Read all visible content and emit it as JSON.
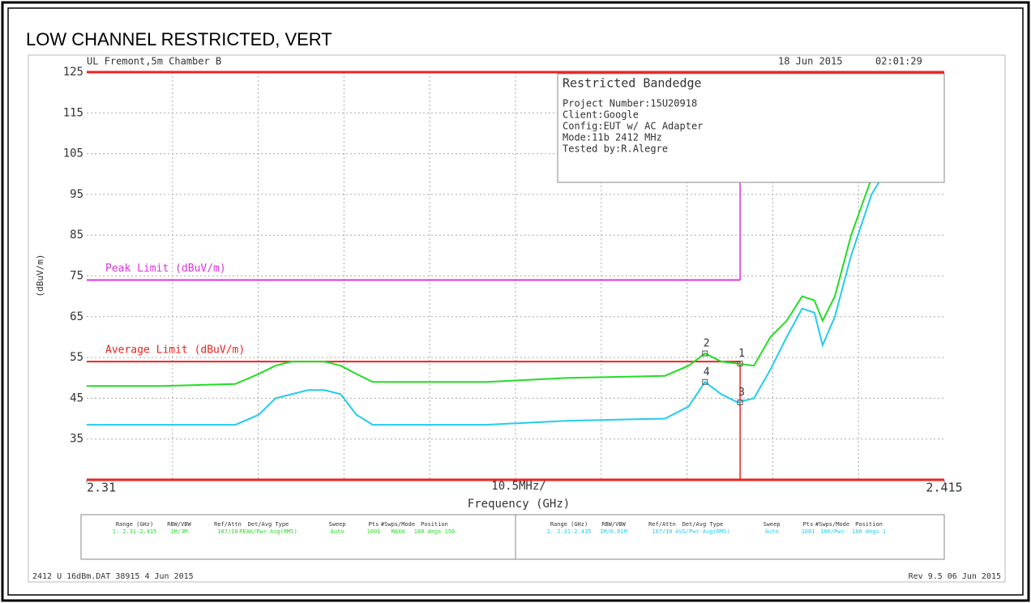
{
  "chart_data": {
    "type": "line",
    "title": "LOW CHANNEL RESTRICTED, VERT",
    "header_left": "UL Fremont,5m Chamber B",
    "header_date": "18 Jun 2015",
    "header_time": "02:01:29",
    "ylabel": "(dBuV/m)",
    "xlabel": "Frequency (GHz)",
    "xscale_label": "10.5MHz/",
    "xlim": [
      2.31,
      2.415
    ],
    "xticks": [
      2.31,
      2.415
    ],
    "ylim": [
      25,
      125
    ],
    "yticks": [
      35,
      45,
      55,
      65,
      75,
      85,
      95,
      105,
      115,
      125
    ],
    "grid": true,
    "x": [
      2.31,
      2.3192,
      2.3282,
      2.3311,
      2.3331,
      2.3351,
      2.3371,
      2.3391,
      2.3411,
      2.343,
      2.345,
      2.3589,
      2.3689,
      2.3808,
      2.3837,
      2.3857,
      2.3877,
      2.3897,
      2.3917,
      2.3937,
      2.3957,
      2.3976,
      2.3991,
      2.4001,
      2.4016,
      2.4036,
      2.4061,
      2.4076,
      2.4095,
      2.4115,
      2.4145,
      2.415
    ],
    "series": [
      {
        "color": "#22dd22",
        "values": [
          48,
          48,
          48.5,
          51,
          53,
          54,
          54,
          54,
          53,
          51,
          49,
          49,
          50,
          50.5,
          53,
          56,
          54,
          53.5,
          53,
          60,
          64,
          70,
          69,
          64,
          70,
          85,
          99,
          104,
          106,
          107,
          106,
          105.5
        ]
      },
      {
        "color": "#22ccee",
        "values": [
          38.5,
          38.5,
          38.5,
          41,
          45,
          46,
          47,
          47,
          46,
          41,
          38.5,
          38.5,
          39.5,
          40,
          43,
          49,
          46,
          44,
          45,
          52,
          60,
          67,
          66,
          58,
          65,
          80,
          95,
          100,
          102,
          103,
          103,
          103
        ]
      }
    ],
    "limits": [
      {
        "name": "Peak Limit (dBuV/m)",
        "value": 74,
        "color": "#dd33dd",
        "x_end": 2.39
      },
      {
        "name": "Average Limit (dBuV/m)",
        "value": 54,
        "color": "#ee2222",
        "x_end": 2.39
      }
    ],
    "markers": [
      {
        "label": "1",
        "x": 2.39,
        "y": 53.5
      },
      {
        "label": "2",
        "x": 2.3857,
        "y": 56
      },
      {
        "label": "3",
        "x": 2.39,
        "y": 44
      },
      {
        "label": "4",
        "x": 2.3857,
        "y": 49
      }
    ],
    "info_box": {
      "title": "Restricted Bandedge",
      "lines": [
        "Project Number:15U20918",
        "Client:Google",
        "Config:EUT w/ AC Adapter",
        "Mode:11b 2412 MHz",
        "Tested by:R.Alegre"
      ]
    },
    "settings_table": {
      "headers": [
        "Range (GHz)",
        "RBW/VBW",
        "Ref/Attn",
        "Det/Avg Type",
        "Sweep",
        "Pts",
        "#Swps/Mode",
        "Position"
      ],
      "rows": [
        [
          "1: 2.31-2.415",
          "1M/3M",
          "107/10",
          "PEAK/Pwr Avg(RMS)",
          "Auto",
          "1001",
          "MAXH",
          "180 degs 150"
        ],
        [
          "2: 2.31-2.415",
          "1M/0.01M",
          "107/10",
          "AVG/Pwr Avg(RMS)",
          "Auto",
          "1001",
          "100/Pwr",
          "180 degs 1"
        ]
      ]
    },
    "footer_left": "2412 U 16dBm.DAT 38915  4 Jun 2015",
    "footer_right": "Rev 9.5 06 Jun 2015"
  }
}
